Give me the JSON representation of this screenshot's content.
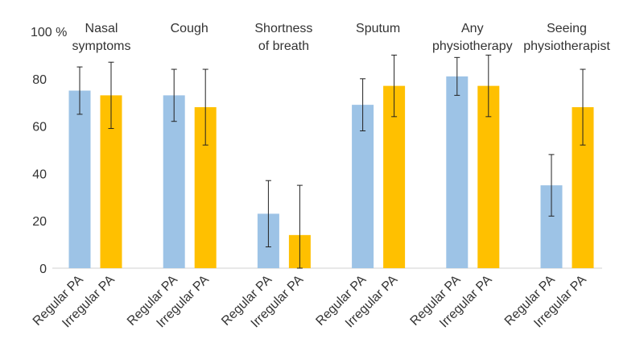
{
  "chart_data": {
    "type": "bar",
    "ylabel": "%",
    "ylim": [
      0,
      100
    ],
    "yticks": [
      0,
      20,
      40,
      60,
      80,
      100
    ],
    "grid": false,
    "colors": {
      "Regular PA": "#9DC3E6",
      "Irregular PA": "#FFC000",
      "error_bar": "#222222",
      "axis": "#d0d0d0"
    },
    "groups": [
      {
        "title": [
          "Nasal",
          "symptoms"
        ],
        "bars": [
          {
            "label": "Regular PA",
            "value": 75,
            "err_low": 65,
            "err_high": 85
          },
          {
            "label": "Irregular PA",
            "value": 73,
            "err_low": 59,
            "err_high": 87
          }
        ]
      },
      {
        "title": [
          "Cough"
        ],
        "bars": [
          {
            "label": "Regular PA",
            "value": 73,
            "err_low": 62,
            "err_high": 84
          },
          {
            "label": "Irregular PA",
            "value": 68,
            "err_low": 52,
            "err_high": 84
          }
        ]
      },
      {
        "title": [
          "Shortness",
          "of breath"
        ],
        "bars": [
          {
            "label": "Regular PA",
            "value": 23,
            "err_low": 9,
            "err_high": 37
          },
          {
            "label": "Irregular PA",
            "value": 14,
            "err_low": 0,
            "err_high": 35
          }
        ]
      },
      {
        "title": [
          "Sputum"
        ],
        "bars": [
          {
            "label": "Regular PA",
            "value": 69,
            "err_low": 58,
            "err_high": 80
          },
          {
            "label": "Irregular PA",
            "value": 77,
            "err_low": 64,
            "err_high": 90
          }
        ]
      },
      {
        "title": [
          "Any",
          "physiotherapy"
        ],
        "bars": [
          {
            "label": "Regular PA",
            "value": 81,
            "err_low": 73,
            "err_high": 89
          },
          {
            "label": "Irregular PA",
            "value": 77,
            "err_low": 64,
            "err_high": 90
          }
        ]
      },
      {
        "title": [
          "Seeing",
          "physiotherapist"
        ],
        "bars": [
          {
            "label": "Regular PA",
            "value": 35,
            "err_low": 22,
            "err_high": 48
          },
          {
            "label": "Irregular PA",
            "value": 68,
            "err_low": 52,
            "err_high": 84
          }
        ]
      }
    ]
  }
}
